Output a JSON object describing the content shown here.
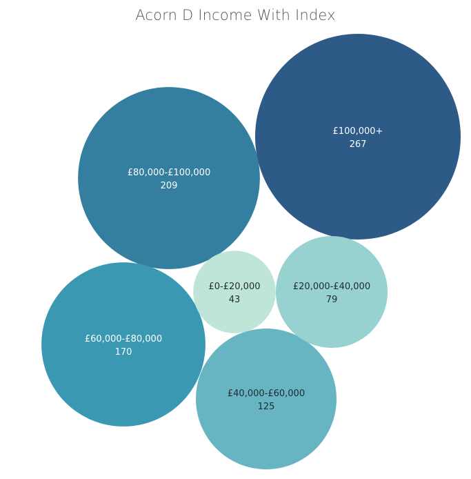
{
  "chart_data": {
    "type": "bubble",
    "title": "Acorn D Income With Index",
    "bubbles": [
      {
        "label": "£100,000+",
        "value": 267,
        "color": "#2e5a87",
        "text_color": "#ffffff"
      },
      {
        "label": "£80,000-£100,000",
        "value": 209,
        "color": "#347fa0",
        "text_color": "#ffffff"
      },
      {
        "label": "£60,000-£80,000",
        "value": 170,
        "color": "#3b98b2",
        "text_color": "#ffffff"
      },
      {
        "label": "£40,000-£60,000",
        "value": 125,
        "color": "#67b4c2",
        "text_color": "#1f2a30"
      },
      {
        "label": "£20,000-£40,000",
        "value": 79,
        "color": "#97d1d0",
        "text_color": "#1f2a30"
      },
      {
        "label": "£0-£20,000",
        "value": 43,
        "color": "#bfe5d9",
        "text_color": "#1f2a30"
      }
    ]
  }
}
